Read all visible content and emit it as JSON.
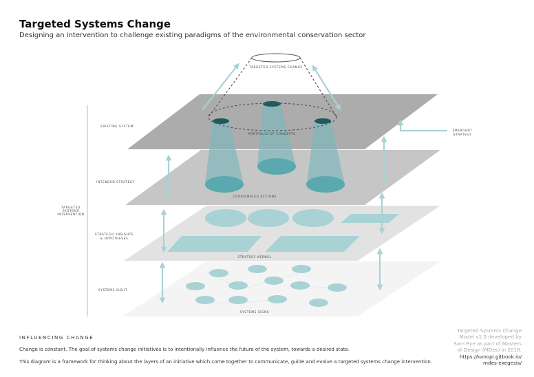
{
  "header": {
    "title": "Targeted Systems Change",
    "subtitle": "Designing an intervention to challenge existing paradigms of the environmental conservation sector"
  },
  "diagram": {
    "top_label": "TARGETED SYSTEMS CHANGE",
    "bracket_label": [
      "TARGETED",
      "SYSTEMS",
      "INTERVENTION"
    ],
    "layers": [
      {
        "label": "EXISTING SYSTEM",
        "caption": "PORTFOLIO OF CONCEPTS"
      },
      {
        "label": "INTENDED STRATEGY",
        "caption": "COORDINATED ACTIONS"
      },
      {
        "label": [
          "STRATEGIC INSIGHTS",
          "& HYPOTHESES"
        ],
        "caption": "STRATEGY KERNEL"
      },
      {
        "label": "SYSTEMS SIGHT",
        "caption": "SYSTEMS SIGNS"
      }
    ],
    "emergent_label": [
      "EMERGENT",
      "STRATEGY"
    ],
    "colors": {
      "teal": "#5aa9ae",
      "teal_light": "#a9d2d5",
      "teal_dark": "#1e5a5e",
      "layer1": "#a9a9a9",
      "layer2": "#c6c6c6",
      "layer3": "#e2e2e2",
      "layer4": "#f4f4f4"
    }
  },
  "footer": {
    "section": "INFLUENCING CHANGE",
    "p1": "Change is constant. The goal of systems change initiatives is to intentionally influence the future of the system, towards a desired state.",
    "p2": "This diagram is a framework for thinking about the layers of an initiative which come together to communicate, guide and evolve a targeted systems change intervention.",
    "credit": [
      "Targeted Systems Change",
      "Model v1.0 developed by",
      "Sam Rye as part of Masters",
      "of Design (MDes) in 2018."
    ],
    "url": [
      "https://kanopi.gitbook.io/",
      "mdes-exegesis/"
    ]
  }
}
